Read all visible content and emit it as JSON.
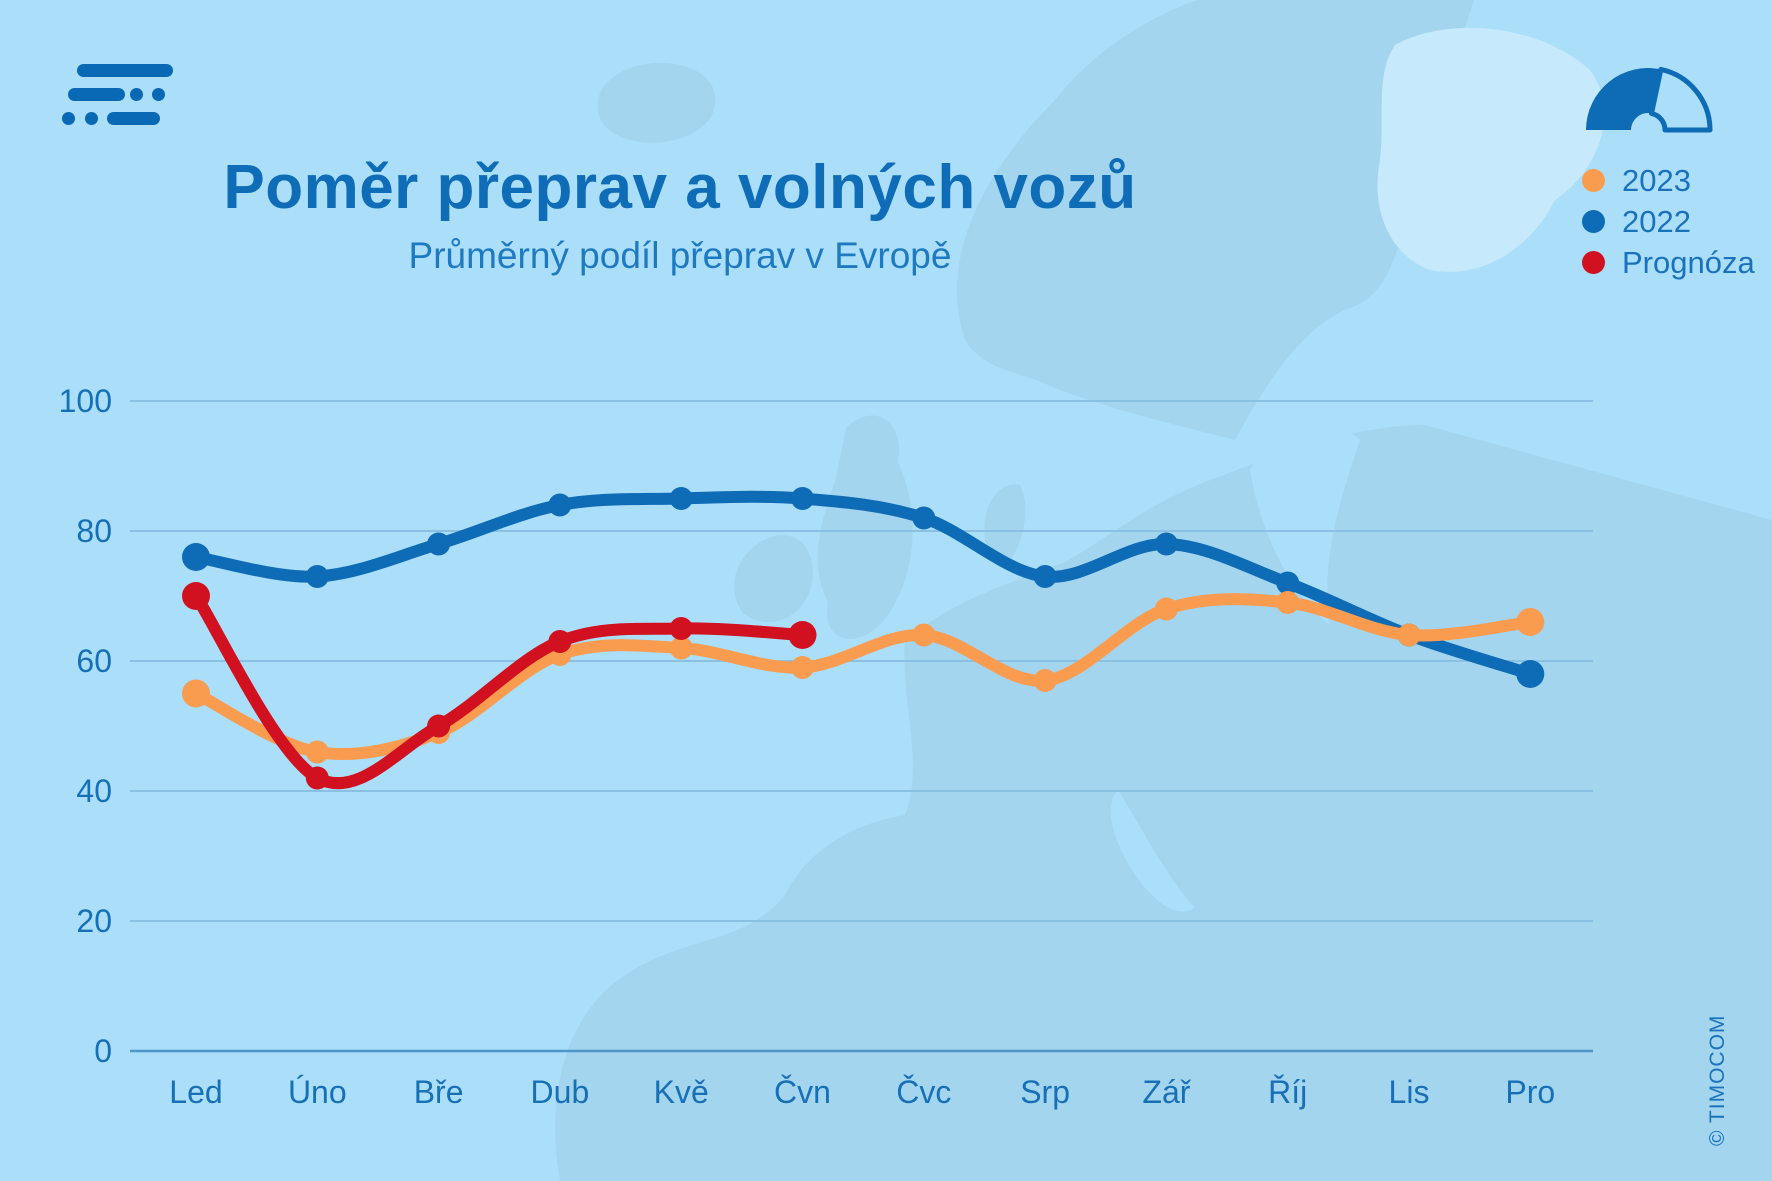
{
  "header": {
    "title": "Poměr přeprav a volných vozů",
    "subtitle": "Průměrný podíl přeprav v Evropě"
  },
  "legend": {
    "items": [
      {
        "label": "2023",
        "color": "#F99C50"
      },
      {
        "label": "2022",
        "color": "#0E6BB5"
      },
      {
        "label": "Prognóza",
        "color": "#D11020"
      }
    ]
  },
  "chart_data": {
    "type": "line",
    "categories": [
      "Led",
      "Úno",
      "Bře",
      "Dub",
      "Kvě",
      "Čvn",
      "Čvc",
      "Srp",
      "Zář",
      "Říj",
      "Lis",
      "Pro"
    ],
    "series": [
      {
        "name": "2023",
        "color": "#F99C50",
        "values": [
          55,
          46,
          49,
          61,
          62,
          59,
          64,
          57,
          68,
          69,
          64,
          66
        ]
      },
      {
        "name": "2022",
        "color": "#0E6BB5",
        "values": [
          76,
          73,
          78,
          84,
          85,
          85,
          82,
          73,
          78,
          72,
          64,
          58
        ]
      },
      {
        "name": "Prognóza",
        "color": "#D11020",
        "values": [
          70,
          42,
          50,
          63,
          65,
          64,
          null,
          null,
          null,
          null,
          null,
          null
        ]
      }
    ],
    "title": "Poměr přeprav a volných vozů",
    "subtitle": "Průměrný podíl přeprav v Evropě",
    "xlabel": "",
    "ylabel": "",
    "ylim": [
      0,
      100
    ],
    "yticks": [
      100,
      80,
      60,
      40,
      20,
      0
    ],
    "grid": true,
    "legend_position": "top-right",
    "draw_order": [
      "2022",
      "2023",
      "Prognóza"
    ]
  },
  "footer": {
    "copyright": "© TIMOCOM"
  },
  "icons": {
    "logo": "timocom-logo",
    "gauge": "speedometer-gauge-icon"
  },
  "colors": {
    "background": "#ABDEF9",
    "map_land": "#A3D5EF",
    "map_light": "#C6E9FB",
    "gridline": "#8AC0E2",
    "zero_axis": "#4E95C9",
    "title": "#0F6CB6",
    "subtitle": "#1E7AC0",
    "axis_label": "#1770B6",
    "legend_text": "#1A72BC",
    "logo": "#0A69B4",
    "gauge": "#0E6BB5",
    "copyright": "#1A72BC"
  }
}
